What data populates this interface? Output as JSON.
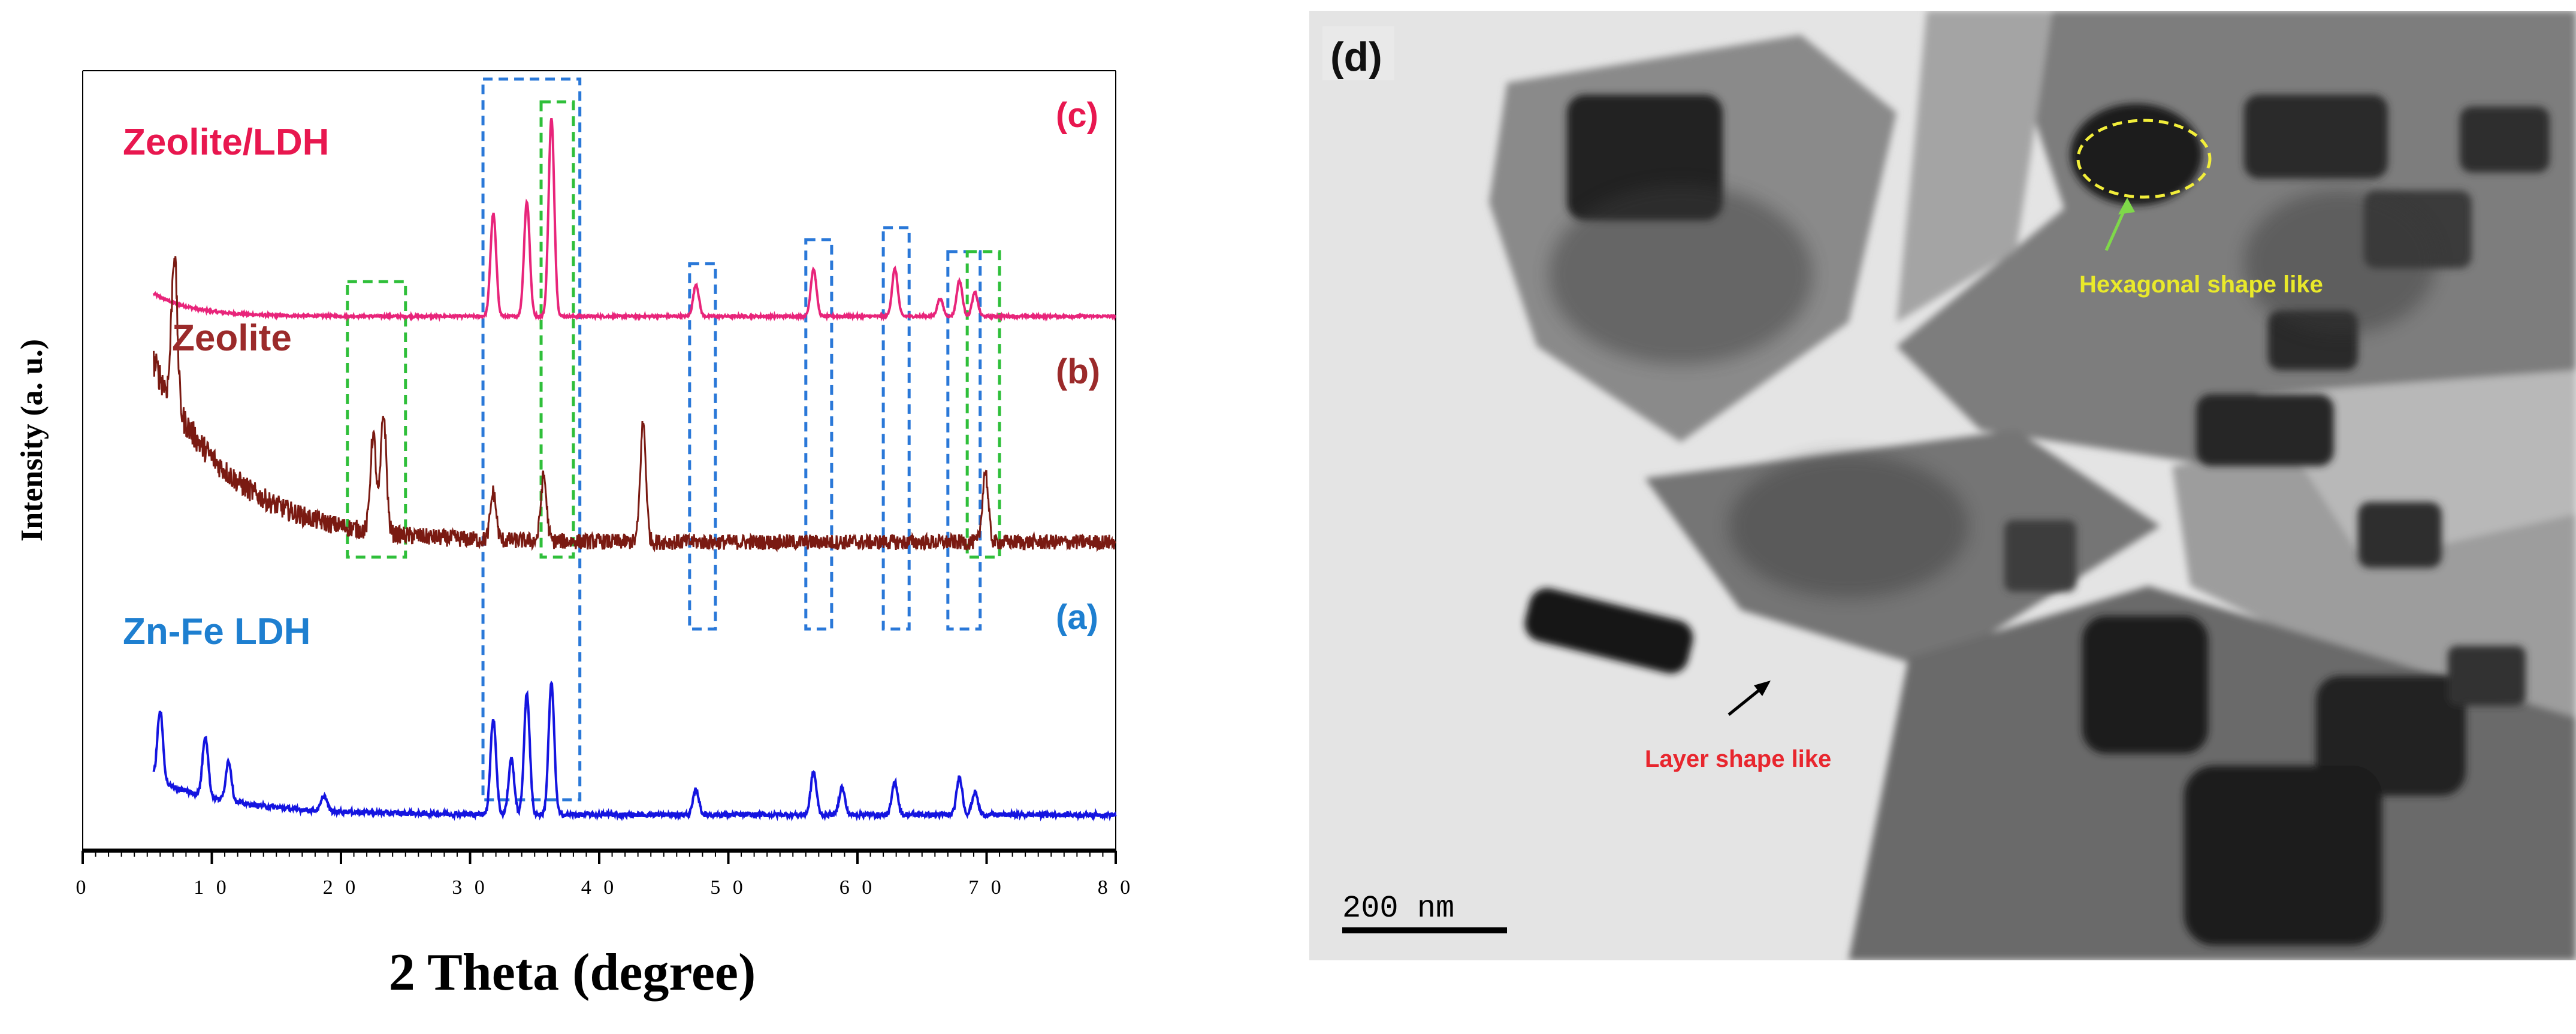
{
  "chart_data": {
    "type": "line",
    "title": "",
    "xlabel": "2 Theta (degree)",
    "ylabel": "Intensity (a. u.)",
    "xlim": [
      0,
      80
    ],
    "x_ticks": [
      "0",
      "1 0",
      "2 0",
      "3 0",
      "4 0",
      "5 0",
      "6 0",
      "7 0",
      "8 0"
    ],
    "x_tick_values": [
      0,
      10,
      20,
      30,
      40,
      50,
      60,
      70,
      80
    ],
    "grid": false,
    "series": [
      {
        "name": "Zeolite/LDH",
        "panel_label": "(c)",
        "color": "#e8247a",
        "label_color": "#e8174f",
        "baseline": 0,
        "peaks": [
          {
            "x": 31.8,
            "y": 0.52
          },
          {
            "x": 34.4,
            "y": 0.58
          },
          {
            "x": 36.3,
            "y": 1.0
          },
          {
            "x": 47.5,
            "y": 0.16
          },
          {
            "x": 56.6,
            "y": 0.24
          },
          {
            "x": 62.9,
            "y": 0.24
          },
          {
            "x": 66.4,
            "y": 0.09
          },
          {
            "x": 67.9,
            "y": 0.18
          },
          {
            "x": 69.1,
            "y": 0.12
          }
        ]
      },
      {
        "name": "Zeolite",
        "panel_label": "(b)",
        "color": "#7a1a12",
        "label_color": "#9b2a2a",
        "baseline": 0,
        "peaks": [
          {
            "x": 7.1,
            "y": 0.7
          },
          {
            "x": 22.5,
            "y": 0.45
          },
          {
            "x": 23.3,
            "y": 0.55
          },
          {
            "x": 31.8,
            "y": 0.22
          },
          {
            "x": 35.7,
            "y": 0.3
          },
          {
            "x": 43.4,
            "y": 0.55
          },
          {
            "x": 69.9,
            "y": 0.33
          }
        ]
      },
      {
        "name": "Zn-Fe LDH",
        "panel_label": "(a)",
        "color": "#1414e0",
        "label_color": "#1e7fd0",
        "baseline": 0,
        "peaks": [
          {
            "x": 6.0,
            "y": 0.28
          },
          {
            "x": 9.5,
            "y": 0.24
          },
          {
            "x": 11.3,
            "y": 0.16
          },
          {
            "x": 18.7,
            "y": 0.06
          },
          {
            "x": 31.8,
            "y": 0.38
          },
          {
            "x": 33.2,
            "y": 0.22
          },
          {
            "x": 34.4,
            "y": 0.48
          },
          {
            "x": 36.3,
            "y": 0.52
          },
          {
            "x": 47.5,
            "y": 0.1
          },
          {
            "x": 56.6,
            "y": 0.17
          },
          {
            "x": 58.8,
            "y": 0.11
          },
          {
            "x": 62.9,
            "y": 0.13
          },
          {
            "x": 67.9,
            "y": 0.15
          },
          {
            "x": 69.1,
            "y": 0.09
          }
        ]
      }
    ],
    "highlight_boxes": [
      {
        "x_range": [
          31.0,
          38.5
        ],
        "color": "#2a78d8",
        "style": "dashed"
      },
      {
        "x_range": [
          47.0,
          49.0
        ],
        "color": "#2a78d8",
        "style": "dashed"
      },
      {
        "x_range": [
          56.0,
          58.0
        ],
        "color": "#2a78d8",
        "style": "dashed"
      },
      {
        "x_range": [
          62.0,
          64.0
        ],
        "color": "#2a78d8",
        "style": "dashed"
      },
      {
        "x_range": [
          67.0,
          69.5
        ],
        "color": "#2a78d8",
        "style": "dashed"
      },
      {
        "x_range": [
          20.5,
          25.0
        ],
        "color": "#2fbf3a",
        "style": "dashed"
      },
      {
        "x_range": [
          35.5,
          38.0
        ],
        "color": "#2fbf3a",
        "style": "dashed"
      },
      {
        "x_range": [
          68.5,
          71.0
        ],
        "color": "#2fbf3a",
        "style": "dashed"
      }
    ]
  },
  "tem_image": {
    "panel_label": "(d)",
    "annotations": [
      {
        "text": "Hexagonal shape like",
        "color": "#e9e92a"
      },
      {
        "text": "Layer shape like",
        "color": "#e8262e"
      }
    ],
    "scale_bar_label": "200 nm",
    "ellipse_color": "#f2ee3a"
  }
}
